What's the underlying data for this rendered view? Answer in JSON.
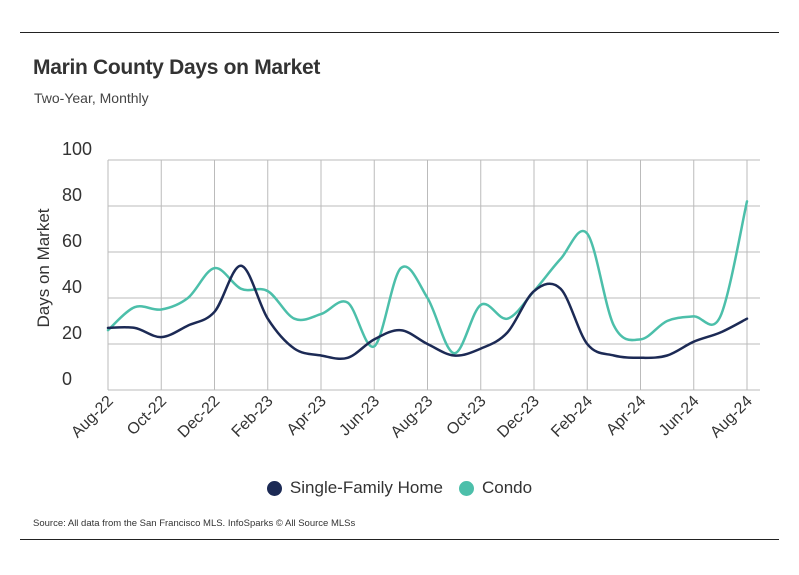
{
  "title": "Marin County Days on Market",
  "subtitle": "Two-Year, Monthly",
  "source": "Source:  All data from the San Francisco MLS. InfoSparks © All Source MLSs",
  "colors": {
    "single_family": "#1c2a55",
    "condo": "#4cbfaa",
    "grid": "#bbbbbb"
  },
  "chart_data": {
    "type": "line",
    "ylabel": "Days on Market",
    "ylim": [
      0,
      100
    ],
    "yticks": [
      0,
      20,
      40,
      60,
      80,
      100
    ],
    "x_tick_labels": [
      "Aug-22",
      "Oct-22",
      "Dec-22",
      "Feb-23",
      "Apr-23",
      "Jun-23",
      "Aug-23",
      "Oct-23",
      "Dec-23",
      "Feb-24",
      "Apr-24",
      "Jun-24",
      "Aug-24"
    ],
    "x": [
      "Aug-22",
      "Sep-22",
      "Oct-22",
      "Nov-22",
      "Dec-22",
      "Jan-23",
      "Feb-23",
      "Mar-23",
      "Apr-23",
      "May-23",
      "Jun-23",
      "Jul-23",
      "Aug-23",
      "Sep-23",
      "Oct-23",
      "Nov-23",
      "Dec-23",
      "Jan-24",
      "Feb-24",
      "Mar-24",
      "Apr-24",
      "May-24",
      "Jun-24",
      "Jul-24",
      "Aug-24"
    ],
    "series": [
      {
        "name": "Single-Family Home",
        "color": "#1c2a55",
        "values": [
          27,
          27,
          23,
          28,
          34,
          54,
          31,
          18,
          15,
          14,
          22,
          26,
          20,
          15,
          18,
          25,
          43,
          44,
          20,
          15,
          14,
          15,
          21,
          25,
          31
        ]
      },
      {
        "name": "Condo",
        "color": "#4cbfaa",
        "values": [
          26,
          36,
          35,
          40,
          53,
          44,
          43,
          31,
          33,
          38,
          19,
          53,
          40,
          16,
          37,
          31,
          43,
          57,
          68,
          28,
          22,
          30,
          32,
          32,
          82
        ]
      }
    ],
    "legend_position": "bottom",
    "grid": true
  }
}
